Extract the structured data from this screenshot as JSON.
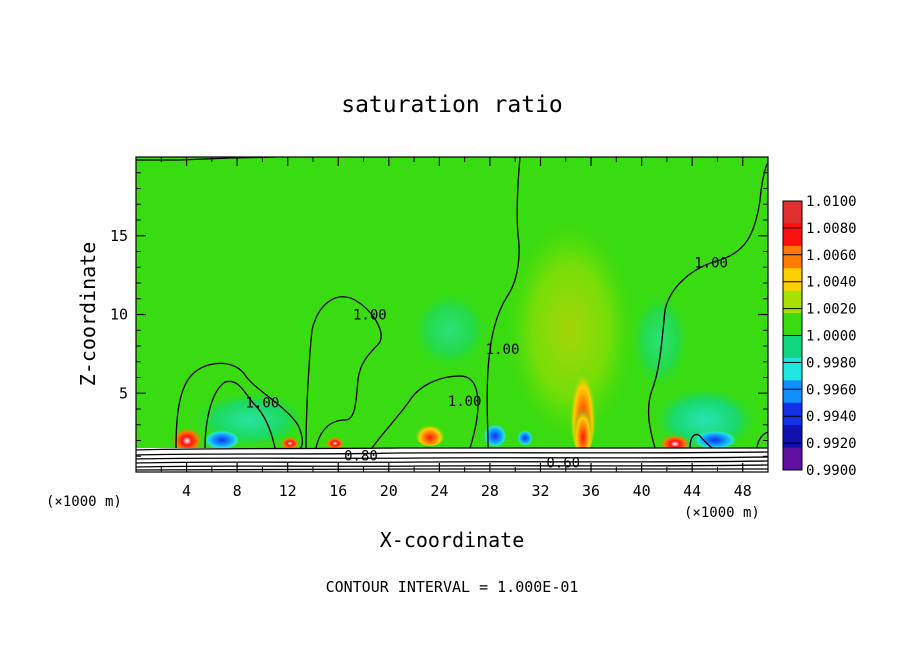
{
  "chart_data": {
    "type": "heatmap",
    "title": "saturation ratio",
    "xlabel": "X-coordinate",
    "ylabel": "Z-coordinate",
    "x_unit_left": "(×1000 m)",
    "x_unit_right": "(×1000 m)",
    "xlim": [
      0,
      50
    ],
    "ylim": [
      0,
      20
    ],
    "x_ticks": [
      4,
      8,
      12,
      16,
      20,
      24,
      28,
      32,
      36,
      40,
      44,
      48
    ],
    "y_ticks": [
      5,
      10,
      15
    ],
    "x_tick_labels": [
      "4",
      "8",
      "12",
      "16",
      "20",
      "24",
      "28",
      "32",
      "36",
      "40",
      "44",
      "48"
    ],
    "y_tick_labels": [
      "5",
      "10",
      "15"
    ],
    "footnote": "CONTOUR INTERVAL = 1.000E-01",
    "contour_labels": [
      {
        "text": "1.00",
        "x": 10.0,
        "y": 4.4
      },
      {
        "text": "1.00",
        "x": 18.5,
        "y": 10.0
      },
      {
        "text": "1.00",
        "x": 26.0,
        "y": 4.5
      },
      {
        "text": "1.00",
        "x": 29.0,
        "y": 7.8
      },
      {
        "text": "1.00",
        "x": 45.5,
        "y": 13.3
      },
      {
        "text": "0.80",
        "x": 17.8,
        "y": 1.05
      },
      {
        "text": "0.60",
        "x": 33.8,
        "y": 0.6
      }
    ],
    "colorbar": {
      "ticks": [
        "1.0100",
        "1.0080",
        "1.0060",
        "1.0040",
        "1.0020",
        "1.0000",
        "0.9980",
        "0.9960",
        "0.9940",
        "0.9920",
        "0.9900"
      ],
      "colors": [
        "#e03030",
        "#ff1010",
        "#ff7a00",
        "#ffd000",
        "#a8e000",
        "#38dc10",
        "#10d880",
        "#20e6e0",
        "#1090ff",
        "#1430e8",
        "#1010b0",
        "#6010a0"
      ]
    }
  }
}
